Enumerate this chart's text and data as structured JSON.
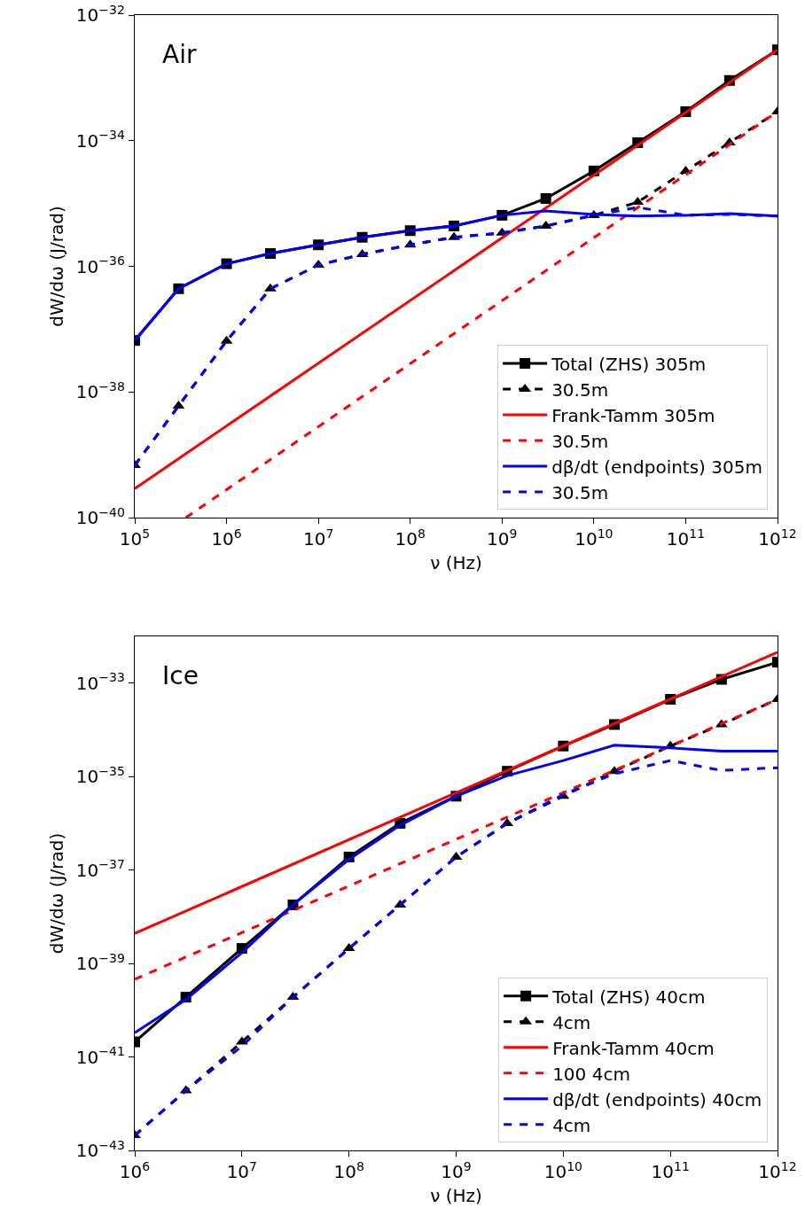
{
  "chart_data": [
    {
      "type": "line",
      "xlabel": "ν (Hz)",
      "ylabel": "dW/dω (J/rad)",
      "annotations": [
        "Air"
      ],
      "log": "xy",
      "legend": "bottom right",
      "xlim": [
        100000.0,
        1000000000000.0
      ],
      "ylim": [
        1e-40,
        1e-32
      ],
      "xticks": [
        {
          "value": 100000.0,
          "label": "10$^{5}$"
        },
        {
          "value": 1000000.0,
          "label": "10$^{6}$"
        },
        {
          "value": 10000000.0,
          "label": "10$^{7}$"
        },
        {
          "value": 100000000.0,
          "label": "10$^{8}$"
        },
        {
          "value": 1000000000.0,
          "label": "10$^{9}$"
        },
        {
          "value": 10000000000.0,
          "label": "10$^{10}$"
        },
        {
          "value": 100000000000.0,
          "label": "10$^{11}$"
        },
        {
          "value": 1000000000000.0,
          "label": "10$^{12}$"
        }
      ],
      "yticks": [
        {
          "value": 1e-40,
          "label": "10$^{−40}$"
        },
        {
          "value": 1e-38,
          "label": "10$^{−38}$"
        },
        {
          "value": 1e-36,
          "label": "10$^{−36}$"
        },
        {
          "value": 1e-34,
          "label": "10$^{−34}$"
        },
        {
          "value": 1e-32,
          "label": "10$^{−32}$"
        }
      ],
      "x": [
        100000.0,
        300000.0,
        1000000.0,
        3000000.0,
        10000000.0,
        30000000.0,
        100000000.0,
        300000000.0,
        1000000000.0,
        3000000000.0,
        10000000000.0,
        30000000000.0,
        100000000000.0,
        300000000000.0,
        1000000000000.0
      ],
      "series": [
        {
          "name": "Total (ZHS) 305m",
          "color": "#000000",
          "marker": "square",
          "line_style": "solid",
          "values": [
            6.6e-38,
            4.4e-37,
            1.1e-36,
            1.6e-36,
            2.2e-36,
            2.9e-36,
            3.7e-36,
            4.4e-36,
            6.5e-36,
            1.2e-35,
            3.3e-35,
            9.3e-35,
            2.9e-34,
            9.1e-34,
            2.8e-33
          ]
        },
        {
          "name": "30.5m",
          "color": "#000000",
          "marker": "triangle",
          "line_style": "dashed",
          "values": [
            6.8e-40,
            6e-39,
            6.5e-38,
            4.4e-37,
            1.05e-36,
            1.55e-36,
            2.2e-36,
            2.9e-36,
            3.4e-36,
            4.4e-36,
            6.5e-36,
            1.05e-35,
            3.3e-35,
            9.3e-35,
            2.9e-34
          ]
        },
        {
          "name": "Frank-Tamm 305m",
          "color": "#ff0000",
          "marker": "none",
          "line_style": "solid",
          "x": [
            100000.0,
            1000000000000.0
          ],
          "values": [
            2.9e-40,
            2.8e-33
          ]
        },
        {
          "name": "30.5m",
          "color": "#ff0000",
          "marker": "none",
          "line_style": "dashed",
          "x": [
            360000.0,
            1000000000000.0
          ],
          "values": [
            1e-40,
            2.9e-34
          ]
        },
        {
          "name": "dβ/dt (endpoints) 305m",
          "color": "#0000ff",
          "marker": "none",
          "line_style": "solid",
          "values": [
            6.6e-38,
            4.4e-37,
            1.1e-36,
            1.6e-36,
            2.2e-36,
            2.9e-36,
            3.7e-36,
            4.4e-36,
            6.5e-36,
            7.6e-36,
            6.7e-36,
            6.3e-36,
            6.5e-36,
            6.9e-36,
            6.3e-36
          ]
        },
        {
          "name": "30.5m",
          "color": "#0000ff",
          "marker": "none",
          "line_style": "dashed",
          "values": [
            6.8e-40,
            6e-39,
            6.5e-38,
            4.4e-37,
            1.05e-36,
            1.55e-36,
            2.2e-36,
            2.9e-36,
            3.4e-36,
            4.4e-36,
            6.5e-36,
            8.7e-36,
            6.5e-36,
            6.7e-36,
            6.3e-36
          ]
        }
      ]
    },
    {
      "type": "line",
      "xlabel": "ν (Hz)",
      "ylabel": "dW/dω (J/rad)",
      "annotations": [
        "Ice"
      ],
      "log": "xy",
      "legend": "bottom right",
      "xlim": [
        1000000.0,
        1000000000000.0
      ],
      "ylim": [
        1e-43,
        1e-32
      ],
      "xticks": [
        {
          "value": 1000000.0,
          "label": "10$^{6}$"
        },
        {
          "value": 10000000.0,
          "label": "10$^{7}$"
        },
        {
          "value": 100000000.0,
          "label": "10$^{8}$"
        },
        {
          "value": 1000000000.0,
          "label": "10$^{9}$"
        },
        {
          "value": 10000000000.0,
          "label": "10$^{10}$"
        },
        {
          "value": 100000000000.0,
          "label": "10$^{11}$"
        },
        {
          "value": 1000000000000.0,
          "label": "10$^{12}$"
        }
      ],
      "yticks": [
        {
          "value": 1e-43,
          "label": "10$^{−43}$"
        },
        {
          "value": 1e-41,
          "label": "10$^{−41}$"
        },
        {
          "value": 1e-39,
          "label": "10$^{−39}$"
        },
        {
          "value": 1e-37,
          "label": "10$^{−37}$"
        },
        {
          "value": 1e-35,
          "label": "10$^{−35}$"
        },
        {
          "value": 1e-33,
          "label": "10$^{−33}$"
        }
      ],
      "x": [
        1000000.0,
        3000000.0,
        10000000.0,
        30000000.0,
        100000000.0,
        300000000.0,
        1000000000.0,
        3000000000.0,
        10000000000.0,
        30000000000.0,
        100000000000.0,
        300000000000.0,
        1000000000000.0
      ],
      "series": [
        {
          "name": "Total (ZHS) 40cm",
          "color": "#000000",
          "marker": "square",
          "line_style": "solid",
          "values": [
            2.1e-41,
            1.9e-40,
            2.1e-39,
            1.8e-38,
            1.9e-37,
            1e-36,
            3.8e-36,
            1.3e-35,
            4.5e-35,
            1.3e-34,
            4.5e-34,
            1.2e-33,
            2.8e-33
          ]
        },
        {
          "name": "4cm",
          "color": "#000000",
          "marker": "triangle",
          "line_style": "dashed",
          "values": [
            2.1e-43,
            1.9e-42,
            2.1e-41,
            1.9e-40,
            2.1e-39,
            1.8e-38,
            1.9e-37,
            1e-36,
            3.8e-36,
            1.3e-35,
            4.5e-35,
            1.3e-34,
            4.5e-34
          ]
        },
        {
          "name": "Frank-Tamm 40cm",
          "color": "#ff0000",
          "marker": "none",
          "line_style": "solid",
          "x": [
            1000000.0,
            1000000000000.0
          ],
          "values": [
            4.4e-39,
            4.6e-33
          ]
        },
        {
          "name": "100 4cm",
          "color": "#ff0000",
          "marker": "none",
          "line_style": "dashed",
          "x": [
            1000000.0,
            1000000000000.0
          ],
          "values": [
            4.6e-40,
            4.5e-34
          ]
        },
        {
          "name": "dβ/dt (endpoints) 40cm",
          "color": "#0000ff",
          "marker": "none",
          "line_style": "solid",
          "values": [
            3.3e-41,
            1.7e-40,
            1.7e-39,
            1.8e-38,
            1.7e-37,
            9.1e-37,
            3.8e-36,
            1.05e-35,
            2.2e-35,
            4.7e-35,
            4.1e-35,
            3.5e-35,
            3.5e-35
          ]
        },
        {
          "name": "4cm",
          "color": "#0000ff",
          "marker": "none",
          "line_style": "dashed",
          "values": [
            2.1e-43,
            1.9e-42,
            1.7e-41,
            1.9e-40,
            2.1e-39,
            1.8e-38,
            1.9e-37,
            1e-36,
            4.1e-36,
            1.15e-35,
            2.2e-35,
            1.35e-35,
            1.55e-35
          ]
        }
      ]
    }
  ]
}
